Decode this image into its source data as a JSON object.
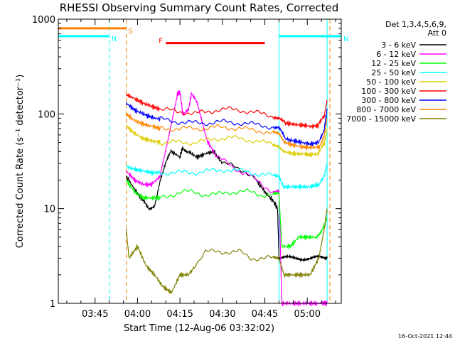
{
  "chart_data": {
    "type": "line",
    "title": "RHESSI Observing Summary Count Rates, Corrected",
    "xlabel": "Start Time (12-Aug-06 03:32:02)",
    "ylabel": "Corrected Count Rate (s⁻¹ detector⁻¹)",
    "ylog": true,
    "ylim": [
      1,
      1000
    ],
    "xlim_min": [
      0,
      100
    ],
    "x_tick_labels": [
      "03:45",
      "04:00",
      "04:15",
      "04:30",
      "04:45",
      "05:00"
    ],
    "x_tick_minutes": [
      13,
      28,
      43,
      58,
      73,
      88
    ],
    "y_tick_labels": [
      "1",
      "10",
      "100",
      "1000"
    ],
    "y_tick_values": [
      1,
      10,
      100,
      1000
    ],
    "legend_header": [
      "Det 1,3,4,5,6,9,",
      "Att 0"
    ],
    "timestamp": "16-Oct-2021 12:44",
    "flags": [
      {
        "label": "S",
        "color": "#ff7f00",
        "value": 800,
        "x_start": 0,
        "x_end": 24
      },
      {
        "label": "N",
        "color": "#00ffff",
        "value": 660,
        "x_start": 0,
        "x_end": 18
      },
      {
        "label": "N",
        "color": "#00ffff",
        "value": 660,
        "x_start": 78,
        "x_end": 100
      },
      {
        "label": "F",
        "color": "#ff0000",
        "value": 560,
        "x_start": 38,
        "x_end": 73
      }
    ],
    "vlines": [
      {
        "x": 18,
        "color": "#00ffff",
        "dash": true
      },
      {
        "x": 24,
        "color": "#ff7f00",
        "dash": true
      },
      {
        "x": 78,
        "color": "#00ffff",
        "dash": false
      },
      {
        "x": 95,
        "color": "#00ffff",
        "dash": false
      },
      {
        "x": 96,
        "color": "#ff7f00",
        "dash": true
      }
    ],
    "series": [
      {
        "name": "3 - 6 keV",
        "color": "#000000",
        "points": [
          [
            24,
            22
          ],
          [
            27,
            16
          ],
          [
            30,
            12
          ],
          [
            32,
            10
          ],
          [
            34,
            11
          ],
          [
            36,
            20
          ],
          [
            38,
            30
          ],
          [
            40,
            40
          ],
          [
            43,
            35
          ],
          [
            44,
            45
          ],
          [
            46,
            40
          ],
          [
            49,
            35
          ],
          [
            52,
            38
          ],
          [
            55,
            40
          ],
          [
            58,
            30
          ],
          [
            62,
            28
          ],
          [
            66,
            25
          ],
          [
            70,
            20
          ],
          [
            73,
            15
          ],
          [
            76,
            12
          ],
          [
            77.5,
            10
          ],
          [
            78,
            3
          ],
          [
            80,
            3
          ],
          [
            82,
            3
          ],
          [
            84,
            3
          ],
          [
            86,
            3
          ],
          [
            88,
            3
          ],
          [
            90,
            3
          ],
          [
            92,
            3
          ],
          [
            94,
            3
          ],
          [
            95,
            3
          ]
        ]
      },
      {
        "name": "6 - 12 keV",
        "color": "#ff00ff",
        "points": [
          [
            24,
            25
          ],
          [
            27,
            20
          ],
          [
            30,
            18
          ],
          [
            33,
            18
          ],
          [
            36,
            22
          ],
          [
            38,
            40
          ],
          [
            40,
            80
          ],
          [
            42,
            160
          ],
          [
            43,
            170
          ],
          [
            44,
            100
          ],
          [
            46,
            110
          ],
          [
            47,
            160
          ],
          [
            49,
            130
          ],
          [
            51,
            80
          ],
          [
            53,
            50
          ],
          [
            56,
            35
          ],
          [
            60,
            30
          ],
          [
            64,
            25
          ],
          [
            68,
            22
          ],
          [
            72,
            18
          ],
          [
            76,
            15
          ],
          [
            78,
            15
          ],
          [
            79,
            1
          ],
          [
            82,
            1
          ],
          [
            85,
            1
          ],
          [
            88,
            1
          ],
          [
            91,
            1
          ],
          [
            94,
            1
          ],
          [
            95,
            1
          ]
        ]
      },
      {
        "name": "12 - 25 keV",
        "color": "#00ff00",
        "points": [
          [
            24,
            20
          ],
          [
            27,
            15
          ],
          [
            30,
            13
          ],
          [
            33,
            13
          ],
          [
            36,
            13
          ],
          [
            40,
            14
          ],
          [
            44,
            15
          ],
          [
            48,
            15
          ],
          [
            52,
            14
          ],
          [
            56,
            14
          ],
          [
            60,
            15
          ],
          [
            64,
            15
          ],
          [
            68,
            15
          ],
          [
            72,
            14
          ],
          [
            76,
            14
          ],
          [
            78,
            14
          ],
          [
            79,
            4
          ],
          [
            82,
            4
          ],
          [
            85,
            5
          ],
          [
            88,
            5
          ],
          [
            91,
            5
          ],
          [
            93,
            6
          ],
          [
            95,
            8
          ]
        ]
      },
      {
        "name": "25 - 50 keV",
        "color": "#00ffff",
        "points": [
          [
            24,
            28
          ],
          [
            27,
            26
          ],
          [
            30,
            25
          ],
          [
            33,
            24
          ],
          [
            36,
            24
          ],
          [
            40,
            24
          ],
          [
            44,
            24
          ],
          [
            48,
            24
          ],
          [
            52,
            25
          ],
          [
            56,
            25
          ],
          [
            60,
            26
          ],
          [
            64,
            25
          ],
          [
            68,
            24
          ],
          [
            72,
            23
          ],
          [
            76,
            22
          ],
          [
            78,
            22
          ],
          [
            80,
            17
          ],
          [
            83,
            17
          ],
          [
            86,
            17
          ],
          [
            89,
            17
          ],
          [
            92,
            18
          ],
          [
            94,
            22
          ],
          [
            95,
            30
          ]
        ]
      },
      {
        "name": "50 - 100 keV",
        "color": "#ddcc00",
        "points": [
          [
            24,
            75
          ],
          [
            27,
            62
          ],
          [
            30,
            55
          ],
          [
            33,
            52
          ],
          [
            36,
            50
          ],
          [
            40,
            50
          ],
          [
            44,
            50
          ],
          [
            48,
            50
          ],
          [
            52,
            52
          ],
          [
            56,
            55
          ],
          [
            60,
            56
          ],
          [
            64,
            55
          ],
          [
            68,
            53
          ],
          [
            72,
            50
          ],
          [
            76,
            48
          ],
          [
            78,
            47
          ],
          [
            80,
            40
          ],
          [
            83,
            38
          ],
          [
            86,
            38
          ],
          [
            89,
            37
          ],
          [
            92,
            38
          ],
          [
            94,
            48
          ],
          [
            95,
            70
          ]
        ]
      },
      {
        "name": "100 - 300 keV",
        "color": "#ff0000",
        "points": [
          [
            24,
            160
          ],
          [
            27,
            145
          ],
          [
            30,
            130
          ],
          [
            33,
            120
          ],
          [
            36,
            112
          ],
          [
            40,
            108
          ],
          [
            44,
            105
          ],
          [
            48,
            100
          ],
          [
            52,
            105
          ],
          [
            56,
            110
          ],
          [
            60,
            112
          ],
          [
            64,
            110
          ],
          [
            68,
            105
          ],
          [
            72,
            100
          ],
          [
            76,
            95
          ],
          [
            78,
            92
          ],
          [
            80,
            80
          ],
          [
            83,
            78
          ],
          [
            86,
            76
          ],
          [
            89,
            74
          ],
          [
            92,
            75
          ],
          [
            94,
            95
          ],
          [
            95,
            140
          ]
        ]
      },
      {
        "name": "300 - 800 keV",
        "color": "#0000ff",
        "points": [
          [
            24,
            130
          ],
          [
            27,
            110
          ],
          [
            30,
            100
          ],
          [
            33,
            92
          ],
          [
            36,
            88
          ],
          [
            40,
            84
          ],
          [
            44,
            82
          ],
          [
            48,
            80
          ],
          [
            52,
            80
          ],
          [
            56,
            82
          ],
          [
            60,
            82
          ],
          [
            64,
            80
          ],
          [
            68,
            78
          ],
          [
            72,
            76
          ],
          [
            76,
            72
          ],
          [
            78,
            70
          ],
          [
            80,
            55
          ],
          [
            83,
            52
          ],
          [
            86,
            50
          ],
          [
            89,
            48
          ],
          [
            92,
            50
          ],
          [
            94,
            70
          ],
          [
            95,
            110
          ]
        ]
      },
      {
        "name": "800 - 7000 keV",
        "color": "#ff8800",
        "points": [
          [
            24,
            100
          ],
          [
            27,
            85
          ],
          [
            30,
            78
          ],
          [
            33,
            74
          ],
          [
            36,
            70
          ],
          [
            40,
            70
          ],
          [
            44,
            70
          ],
          [
            48,
            70
          ],
          [
            52,
            71
          ],
          [
            56,
            72
          ],
          [
            60,
            72
          ],
          [
            64,
            70
          ],
          [
            68,
            68
          ],
          [
            72,
            66
          ],
          [
            76,
            62
          ],
          [
            78,
            60
          ],
          [
            80,
            50
          ],
          [
            83,
            47
          ],
          [
            86,
            45
          ],
          [
            89,
            44
          ],
          [
            92,
            45
          ],
          [
            94,
            60
          ],
          [
            95,
            90
          ]
        ]
      },
      {
        "name": "7000 - 15000 keV",
        "color": "#808000",
        "points": [
          [
            24,
            6
          ],
          [
            25,
            3
          ],
          [
            28,
            4
          ],
          [
            31,
            2.5
          ],
          [
            34,
            2
          ],
          [
            37,
            1.5
          ],
          [
            40,
            1.3
          ],
          [
            43,
            2
          ],
          [
            46,
            2
          ],
          [
            48,
            2.5
          ],
          [
            52,
            3.5
          ],
          [
            56,
            3.5
          ],
          [
            60,
            3.5
          ],
          [
            64,
            3.5
          ],
          [
            68,
            3
          ],
          [
            72,
            3
          ],
          [
            76,
            3
          ],
          [
            78,
            3
          ],
          [
            80,
            2
          ],
          [
            83,
            2
          ],
          [
            86,
            2
          ],
          [
            89,
            2
          ],
          [
            92,
            3
          ],
          [
            94,
            6
          ],
          [
            95,
            10
          ]
        ]
      }
    ]
  }
}
